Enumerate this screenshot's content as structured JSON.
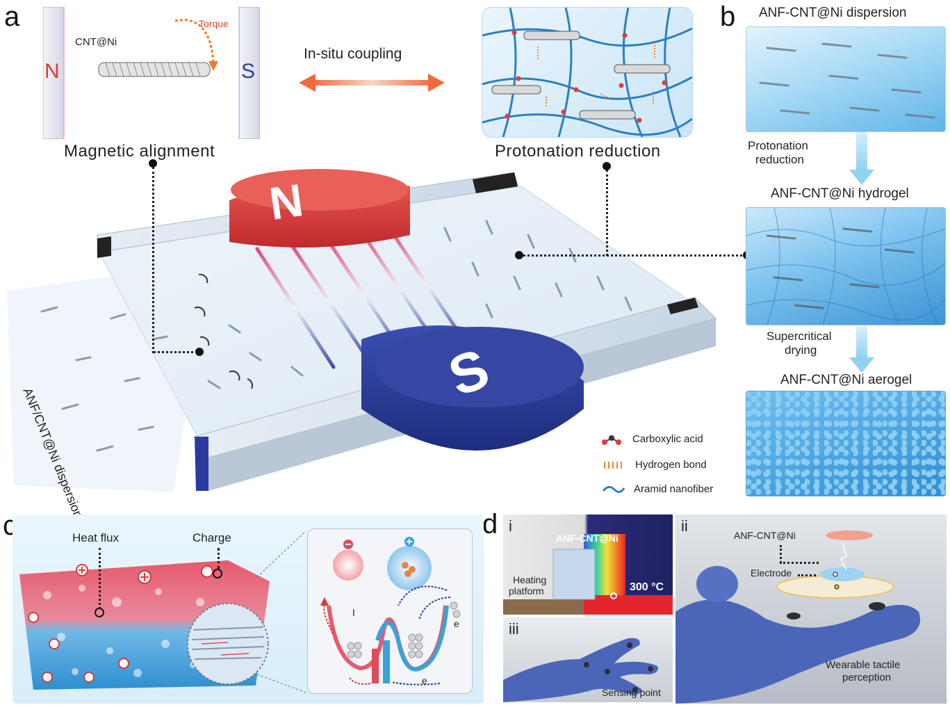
{
  "panels": {
    "a": "a",
    "b": "b",
    "c": "c",
    "d": "d"
  },
  "panel_a": {
    "magnet_n": "N",
    "magnet_s": "S",
    "inset_cnt_label": "CNT@Ni",
    "inset_torque": "Torque",
    "coupling_label": "In-situ coupling",
    "magnetic_alignment": "Magnetic alignment",
    "protonation_reduction": "Protonation reduction",
    "dispersion_side_label": "ANF/CNT@Ni dispersion",
    "platform_n": "N",
    "platform_s": "S",
    "legend": [
      {
        "label": "Carboxylic acid",
        "icon": "molecule-icon"
      },
      {
        "label": "Hydrogen bond",
        "icon": "hydrogen-bond-icon"
      },
      {
        "label": "Aramid nanofiber",
        "icon": "fiber-wave-icon"
      }
    ]
  },
  "panel_b": {
    "dispersion_title": "ANF-CNT@Ni dispersion",
    "step1": [
      "Protonation",
      "reduction"
    ],
    "hydrogel_title": "ANF-CNT@Ni hydrogel",
    "step2": [
      "Supercritical",
      "drying"
    ],
    "aerogel_title": "ANF-CNT@Ni aerogel"
  },
  "panel_c": {
    "heat_flux": "Heat flux",
    "charge": "Charge",
    "well_labels": [
      "I",
      "e",
      "e"
    ]
  },
  "panel_d": {
    "sub_i": "i",
    "sub_ii": "ii",
    "sub_iii": "iii",
    "anf_sample": "ANF-CNT@Ni",
    "heating_platform": [
      "Heating",
      "platform"
    ],
    "temperature": "300 °C",
    "sensing_point": "Sensing point",
    "device_anf": "ANF-CNT@Ni",
    "electrode": "Electrode",
    "wearable": [
      "Wearable tactile",
      "perception"
    ]
  },
  "colors": {
    "magnet_red": "#d9383a",
    "magnet_blue": "#2b3f9c",
    "arrow_orange": "#ef6a3c",
    "gel_blue": "#5aaee6",
    "heat_red": "#e04a5a",
    "cold_blue": "#3aa3d8"
  }
}
